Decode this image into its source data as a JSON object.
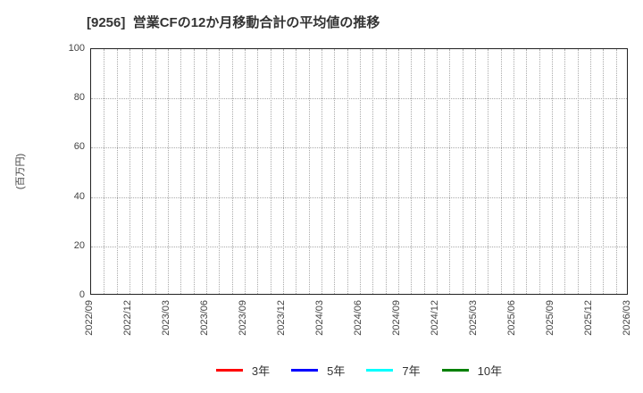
{
  "chart_data": {
    "type": "line",
    "title": "[9256]  営業CFの12か月移動合計の平均値の推移",
    "ylabel": "(百万円)",
    "xlabel": "",
    "ylim": [
      0,
      100
    ],
    "y_ticks": [
      0,
      20,
      40,
      60,
      80,
      100
    ],
    "x_tick_labels": [
      "2022/09",
      "2022/12",
      "2023/03",
      "2023/06",
      "2023/09",
      "2023/12",
      "2024/03",
      "2024/06",
      "2024/09",
      "2024/12",
      "2025/03",
      "2025/06",
      "2025/09",
      "2025/12",
      "2026/03"
    ],
    "months_per_label": 3,
    "grid": true,
    "legend_position": "bottom",
    "series": [
      {
        "name": "3年",
        "color": "#ff0000",
        "values": []
      },
      {
        "name": "5年",
        "color": "#0000ff",
        "values": []
      },
      {
        "name": "7年",
        "color": "#00ffff",
        "values": []
      },
      {
        "name": "10年",
        "color": "#008000",
        "values": []
      }
    ],
    "colors": {
      "title": "#333333",
      "tick_labels": "#444444",
      "grid": "#aaaaaa",
      "frame": "#222222",
      "background": "#ffffff"
    }
  }
}
